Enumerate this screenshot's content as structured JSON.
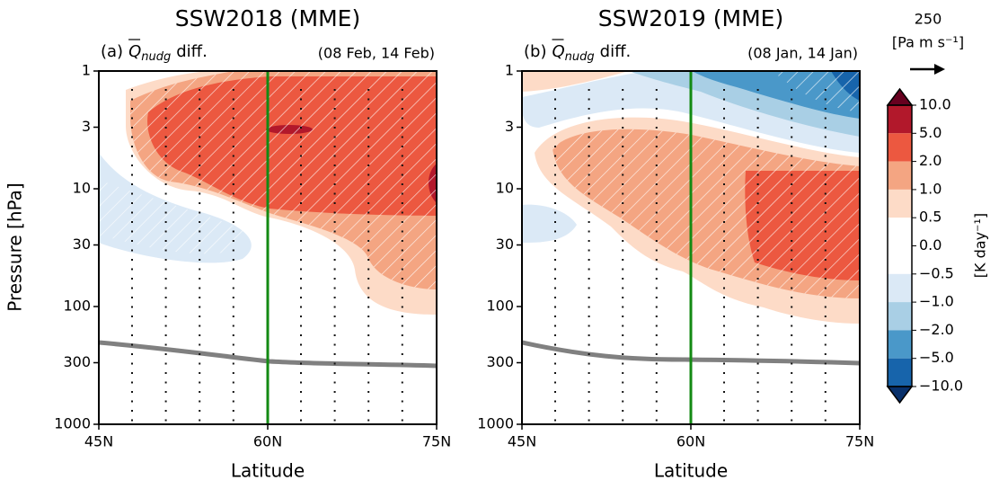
{
  "chart_data": [
    {
      "type": "contour",
      "title": "SSW2018 (MME)",
      "panel_label": "(a)",
      "quantity": "Q",
      "quantity_sub": "nudg",
      "suffix": "diff.",
      "dates": "(08 Feb, 14 Feb)",
      "xlabel": "Latitude",
      "ylabel": "Pressure [hPa]",
      "xlim": [
        45,
        75
      ],
      "ylim": [
        1000,
        1
      ],
      "log_y": true,
      "xticks": [
        {
          "value": 45,
          "label": "45N"
        },
        {
          "value": 60,
          "label": "60N"
        },
        {
          "value": 75,
          "label": "75N"
        }
      ],
      "yticks": [
        1,
        3,
        10,
        30,
        100,
        300,
        1000
      ],
      "vline": 60,
      "vline_color": "#138a13"
    },
    {
      "type": "contour",
      "title": "SSW2019 (MME)",
      "panel_label": "(b)",
      "quantity": "Q",
      "quantity_sub": "nudg",
      "suffix": "diff.",
      "dates": "(08 Jan, 14 Jan)",
      "xlabel": "Latitude",
      "xlim": [
        45,
        75
      ],
      "ylim": [
        1000,
        1
      ],
      "log_y": true,
      "xticks": [
        {
          "value": 45,
          "label": "45N"
        },
        {
          "value": 60,
          "label": "60N"
        },
        {
          "value": 75,
          "label": "75N"
        }
      ],
      "yticks": [
        1,
        3,
        10,
        30,
        100,
        300,
        1000
      ],
      "vline": 60,
      "vline_color": "#138a13"
    }
  ],
  "colorbar": {
    "label": "[K day⁻¹]",
    "ticks": [
      {
        "value": 10,
        "label": "10.0"
      },
      {
        "value": 5,
        "label": "5.0"
      },
      {
        "value": 2,
        "label": "2.0"
      },
      {
        "value": 1,
        "label": "1.0"
      },
      0.5,
      {
        "value": 0,
        "label": "0.0"
      },
      {
        "value": -0.5,
        "label": "−0.5"
      },
      {
        "value": -1,
        "label": "−1.0"
      },
      {
        "value": -2,
        "label": "−2.0"
      },
      {
        "value": -5,
        "label": "−5.0"
      },
      {
        "value": -10,
        "label": "−10.0"
      }
    ],
    "colors": [
      "#b2182b",
      "#ec5840",
      "#f4a582",
      "#fddbc7",
      "#ffffff",
      "#ffffff",
      "#dbe9f6",
      "#a9cfe5",
      "#4a98c9",
      "#1764ab"
    ],
    "extend_colors": [
      "#67001f",
      "#08306b"
    ]
  },
  "vector_key": {
    "value": "250",
    "units": "[Pa m s⁻¹]"
  }
}
